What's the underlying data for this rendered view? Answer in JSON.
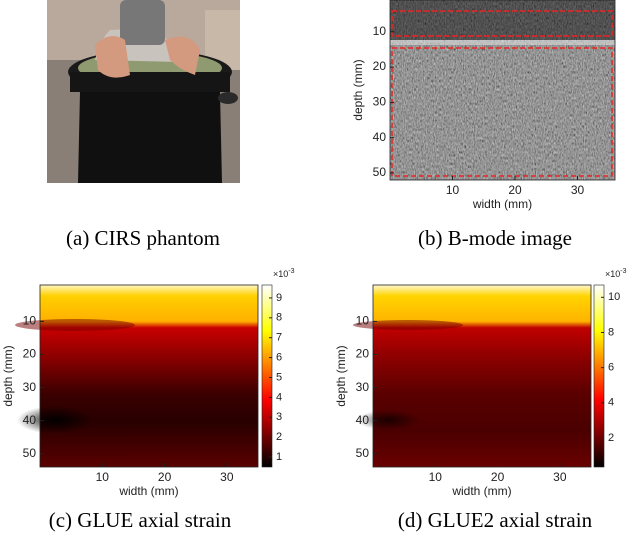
{
  "panels": [
    {
      "caption": "(a) CIRS phantom"
    },
    {
      "caption": "(b) B-mode image",
      "xlabel": "width (mm)",
      "ylabel": "depth (mm)",
      "xlim": [
        0,
        36
      ],
      "ylim": [
        1,
        52
      ],
      "xticks": [
        10,
        20,
        30
      ],
      "yticks": [
        10,
        20,
        30,
        40,
        50
      ]
    },
    {
      "caption": "(c) GLUE axial strain",
      "xlabel": "width (mm)",
      "ylabel": "depth (mm)",
      "xlim": [
        0,
        35
      ],
      "ylim": [
        -1,
        54
      ],
      "xticks": [
        10,
        20,
        30
      ],
      "yticks": [
        10,
        20,
        30,
        40,
        50
      ],
      "colorbar": {
        "lim": [
          0.5,
          9.65
        ],
        "ticks": [
          1,
          2,
          3,
          4,
          5,
          6,
          7,
          8,
          9
        ],
        "exponent_base": "×10",
        "exponent_power": "-3"
      }
    },
    {
      "caption": "(d) GLUE2 axial strain",
      "xlabel": "width (mm)",
      "ylabel": "depth (mm)",
      "xlim": [
        0,
        35
      ],
      "ylim": [
        -1,
        54
      ],
      "xticks": [
        10,
        20,
        30
      ],
      "yticks": [
        10,
        20,
        30,
        40,
        50
      ],
      "colorbar": {
        "lim": [
          0.35,
          10.7
        ],
        "ticks": [
          2,
          4,
          6,
          8,
          10
        ],
        "exponent_base": "×10",
        "exponent_power": "-3"
      }
    }
  ]
}
